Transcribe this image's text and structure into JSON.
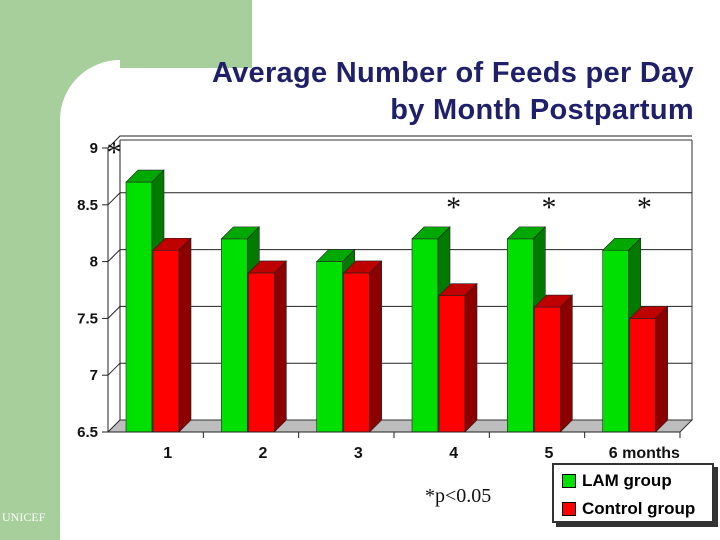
{
  "footer_label": "UNICEF",
  "footnote": "p<0.05",
  "significance_marker": "*",
  "colors": {
    "background_band": "#a6cf9c",
    "title": "#1f1f6a",
    "lam": "#00e000",
    "control": "#ff0000"
  },
  "chart_data": {
    "type": "bar",
    "title": "Average Number of Feeds per Day",
    "subtitle": "by Month Postpartum",
    "categories": [
      "1",
      "2",
      "3",
      "4",
      "5",
      "6 months"
    ],
    "series": [
      {
        "name": "LAM group",
        "values": [
          8.7,
          8.2,
          8.0,
          8.2,
          8.2,
          8.1
        ]
      },
      {
        "name": "Control group",
        "values": [
          8.1,
          7.9,
          7.9,
          7.7,
          7.6,
          7.5
        ]
      }
    ],
    "ylim": [
      6.5,
      9
    ],
    "yticks": [
      "9",
      "8.5",
      "8",
      "7.5",
      "7",
      "6.5"
    ],
    "grid": true,
    "legend_position": "bottom-right",
    "significant_categories": [
      "4",
      "5",
      "6 months"
    ],
    "axis_marker": "*"
  }
}
